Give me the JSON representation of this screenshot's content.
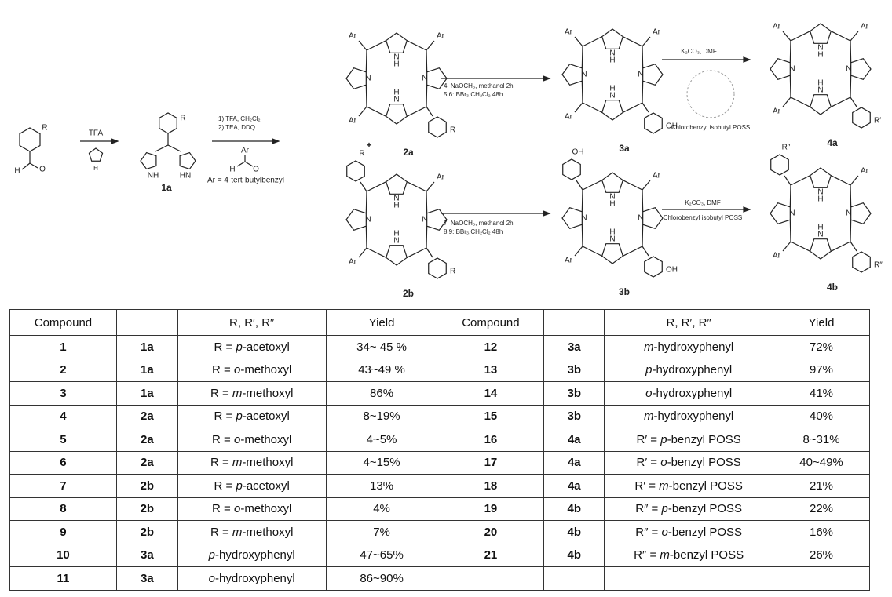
{
  "scheme": {
    "aldehyde": {
      "r": "R",
      "o": "O",
      "h": "H"
    },
    "step1": {
      "reagent": "TFA",
      "pyrrole_h": "H"
    },
    "dipyrromethane": {
      "r": "R",
      "nh_left": "NH",
      "nh_right": "HN",
      "label": "1a"
    },
    "step2": {
      "line1": "1) TFA, CH₂Cl₂",
      "line2": "2) TEA, DDQ",
      "ar": "Ar",
      "h": "H",
      "o": "O",
      "note": "Ar = 4-tert-butylbenzyl"
    },
    "plus": "+",
    "porphyrin": {
      "ar": "Ar",
      "n": "N",
      "h": "H"
    },
    "c2a": {
      "label": "2a",
      "r": "R"
    },
    "c2b": {
      "label": "2b",
      "r": "R",
      "r_top": "R"
    },
    "step3a": {
      "line1": "4: NaOCH₃, methanol 2h",
      "line2": "5,6: BBr₃,CH₂Cl₂ 48h"
    },
    "step3b": {
      "line1": "7: NaOCH₃, methanol 2h",
      "line2": "8,9: BBr₃,CH₂Cl₂ 48h"
    },
    "c3a": {
      "label": "3a",
      "r": "OH"
    },
    "c3b": {
      "label": "3b",
      "r": "OH",
      "r_top": "OH"
    },
    "step4a": {
      "line1": "K₂CO₃, DMF",
      "line2": "Chlorobenzyl isobutyl POSS"
    },
    "step4b": {
      "line1": "K₂CO₃, DMF",
      "line2": "Chlorobenzyl isobutyl POSS"
    },
    "c4a": {
      "label": "4a",
      "r": "R′"
    },
    "c4b": {
      "label": "4b",
      "r": "R″",
      "r_top": "R″"
    }
  },
  "table": {
    "header": [
      "Compound",
      "",
      "R, R′, R″",
      "Yield",
      "Compound",
      "",
      "R, R′, R″",
      "Yield"
    ],
    "rows": [
      [
        "1",
        "1a",
        "R = p-acetoxyl",
        "34~ 45 %",
        "12",
        "3a",
        "m-hydroxyphenyl",
        "72%"
      ],
      [
        "2",
        "1a",
        "R = o-methoxyl",
        "43~49 %",
        "13",
        "3b",
        "p-hydroxyphenyl",
        "97%"
      ],
      [
        "3",
        "1a",
        "R = m-methoxyl",
        "86%",
        "14",
        "3b",
        "o-hydroxyphenyl",
        "41%"
      ],
      [
        "4",
        "2a",
        "R = p-acetoxyl",
        "8~19%",
        "15",
        "3b",
        "m-hydroxyphenyl",
        "40%"
      ],
      [
        "5",
        "2a",
        "R = o-methoxyl",
        "4~5%",
        "16",
        "4a",
        "R′ = p-benzyl POSS",
        "8~31%"
      ],
      [
        "6",
        "2a",
        "R = m-methoxyl",
        "4~15%",
        "17",
        "4a",
        "R′ = o-benzyl POSS",
        "40~49%"
      ],
      [
        "7",
        "2b",
        "R = p-acetoxyl",
        "13%",
        "18",
        "4a",
        "R′ = m-benzyl POSS",
        "21%"
      ],
      [
        "8",
        "2b",
        "R = o-methoxyl",
        "4%",
        "19",
        "4b",
        "R″ = p-benzyl POSS",
        "22%"
      ],
      [
        "9",
        "2b",
        "R = m-methoxyl",
        "7%",
        "20",
        "4b",
        "R″ = o-benzyl POSS",
        "16%"
      ],
      [
        "10",
        "3a",
        "p-hydroxyphenyl",
        "47~65%",
        "21",
        "4b",
        "R″ = m-benzyl POSS",
        "26%"
      ],
      [
        "11",
        "3a",
        "o-hydroxyphenyl",
        "86~90%"
      ]
    ]
  }
}
